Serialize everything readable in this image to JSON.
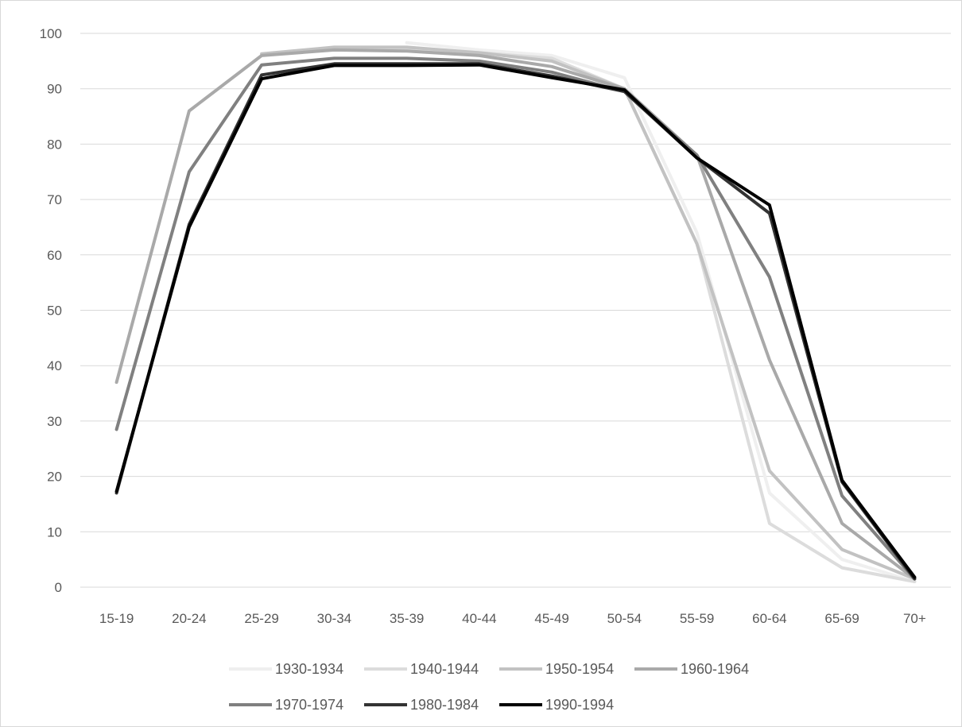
{
  "chart_data": {
    "type": "line",
    "title": "",
    "xlabel": "",
    "ylabel": "",
    "categories": [
      "15-19",
      "20-24",
      "25-29",
      "30-34",
      "35-39",
      "40-44",
      "45-49",
      "50-54",
      "55-59",
      "60-64",
      "65-69",
      "70+"
    ],
    "ylim": [
      0,
      100
    ],
    "yticks": [
      "0",
      "10",
      "20",
      "30",
      "40",
      "50",
      "60",
      "70",
      "80",
      "90",
      "100"
    ],
    "grid": true,
    "legend_position": "bottom",
    "series": [
      {
        "name": "1930-1934",
        "color": "#efefef",
        "values": [
          null,
          null,
          null,
          null,
          98.3,
          97.0,
          96.0,
          92.0,
          64.0,
          17.0,
          5.0,
          1.0
        ]
      },
      {
        "name": "1940-1944",
        "color": "#dcdcdc",
        "values": [
          null,
          null,
          null,
          97.3,
          97.3,
          96.5,
          95.5,
          90.0,
          62.0,
          11.5,
          3.5,
          1.0
        ]
      },
      {
        "name": "1950-1954",
        "color": "#c2c2c2",
        "values": [
          null,
          null,
          96.3,
          97.5,
          97.5,
          96.5,
          95.0,
          90.0,
          62.0,
          21.0,
          6.8,
          1.5
        ]
      },
      {
        "name": "1960-1964",
        "color": "#a9a9a9",
        "values": [
          37.0,
          86.0,
          96.0,
          97.0,
          96.8,
          96.0,
          94.0,
          90.0,
          78.0,
          41.0,
          11.5,
          1.5
        ]
      },
      {
        "name": "1970-1974",
        "color": "#808080",
        "values": [
          28.5,
          75.0,
          94.3,
          95.5,
          95.5,
          95.0,
          93.0,
          89.5,
          78.0,
          56.0,
          16.5,
          1.5
        ]
      },
      {
        "name": "1980-1984",
        "color": "#333333",
        "values": [
          17.0,
          65.5,
          92.5,
          94.5,
          94.5,
          94.5,
          92.3,
          89.5,
          77.5,
          67.5,
          19.0,
          1.5
        ]
      },
      {
        "name": "1990-1994",
        "color": "#000000",
        "values": [
          17.3,
          65.0,
          91.8,
          94.2,
          94.2,
          94.3,
          92.0,
          89.8,
          77.5,
          69.0,
          19.3,
          1.8
        ]
      }
    ]
  }
}
